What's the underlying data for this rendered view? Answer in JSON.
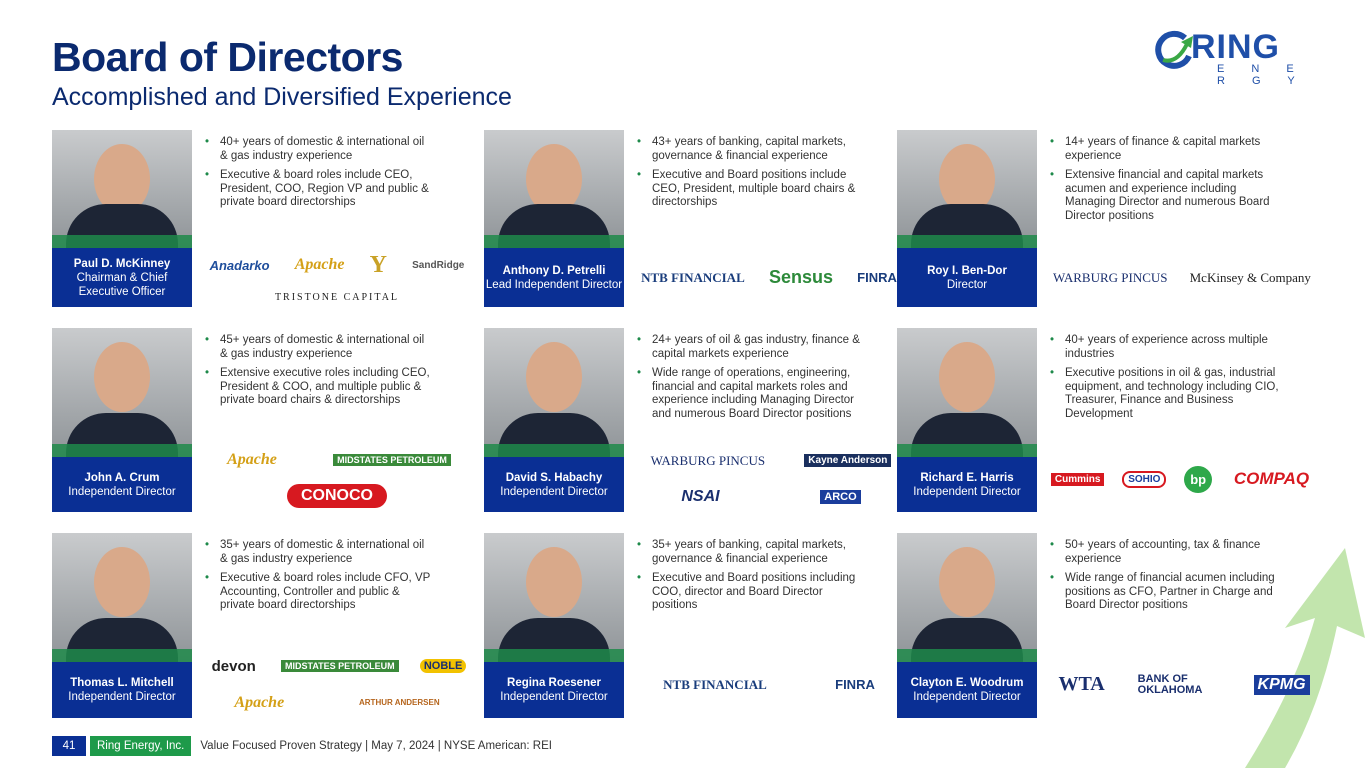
{
  "header": {
    "title": "Board of Directors",
    "subtitle": "Accomplished and Diversified Experience"
  },
  "brand": {
    "name": "RING",
    "tagline": "E N E R G Y",
    "blue": "#1f4fa8",
    "green": "#3aa845"
  },
  "colors": {
    "name_box": "#0a2f94",
    "accent_green": "#1e9a4a",
    "title": "#0b2a6f"
  },
  "directors": [
    {
      "name": "Paul D. McKinney",
      "role": "Chairman & Chief Executive Officer",
      "bullets": [
        "40+ years of domestic &  international oil & gas industry experience",
        "Executive & board roles include CEO, President, COO, Region VP and public & private board directorships"
      ],
      "logos": [
        "Anadarko",
        "Apache",
        "Y",
        "SandRidge",
        "TRISTONE CAPITAL"
      ]
    },
    {
      "name": "Anthony D. Petrelli",
      "role": "Lead Independent Director",
      "bullets": [
        "43+ years of banking, capital markets, governance & financial experience",
        "Executive and Board positions include CEO, President, multiple board chairs & directorships"
      ],
      "logos": [
        "NTB FINANCIAL",
        "Sensus",
        "FINRA"
      ]
    },
    {
      "name": "Roy I. Ben-Dor",
      "role": "Director",
      "bullets": [
        "14+ years of finance & capital markets experience",
        "Extensive financial and capital markets acumen and experience including Managing Director and numerous Board Director positions"
      ],
      "logos": [
        "WARBURG PINCUS",
        "McKinsey & Company"
      ]
    },
    {
      "name": "John A. Crum",
      "role": "Independent Director",
      "bullets": [
        "45+ years of domestic & international oil & gas industry experience",
        "Extensive executive roles including CEO, President & COO, and multiple public & private board chairs & directorships"
      ],
      "logos": [
        "Apache",
        "MIDSTATES PETROLEUM",
        "CONOCO"
      ]
    },
    {
      "name": "David S. Habachy",
      "role": "Independent Director",
      "bullets": [
        "24+ years of oil & gas industry, finance & capital markets experience",
        "Wide range of operations, engineering, financial and capital markets roles and experience including Managing Director and numerous Board Director positions"
      ],
      "logos": [
        "WARBURG PINCUS",
        "Kayne Anderson",
        "NSAI",
        "ARCO"
      ]
    },
    {
      "name": "Richard E. Harris",
      "role": "Independent Director",
      "bullets": [
        "40+ years of experience across multiple industries",
        "Executive positions in oil & gas, industrial equipment, and technology including CIO, Treasurer, Finance and Business Development"
      ],
      "logos": [
        "Cummins",
        "SOHIO",
        "bp",
        "COMPAQ"
      ]
    },
    {
      "name": "Thomas L. Mitchell",
      "role": "Independent Director",
      "bullets": [
        "35+ years of domestic & international oil & gas industry experience",
        "Executive & board roles include CFO, VP Accounting, Controller and public & private board directorships"
      ],
      "logos": [
        "devon",
        "MIDSTATES PETROLEUM",
        "NOBLE",
        "Apache",
        "ARTHUR ANDERSEN"
      ]
    },
    {
      "name": "Regina Roesener",
      "role": "Independent Director",
      "bullets": [
        "35+ years of banking, capital markets, governance & financial experience",
        "Executive and Board positions including COO, director and Board Director positions"
      ],
      "logos": [
        "NTB FINANCIAL",
        "FINRA"
      ]
    },
    {
      "name": "Clayton E. Woodrum",
      "role": "Independent Director",
      "bullets": [
        "50+ years of accounting, tax & finance experience",
        "Wide range of financial acumen including positions as CFO, Partner in Charge and Board Director positions"
      ],
      "logos": [
        "WTA",
        "BANK OF OKLAHOMA",
        "KPMG"
      ]
    }
  ],
  "footer": {
    "page": "41",
    "company": "Ring Energy, Inc.",
    "text": "Value Focused Proven Strategy  | May 7, 2024 |  NYSE American: REI"
  }
}
